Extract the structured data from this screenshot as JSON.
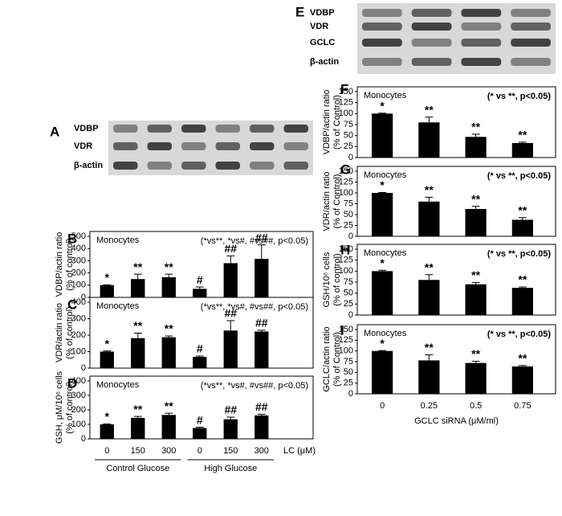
{
  "blots": [
    {
      "panel": "A",
      "labels": [
        "VDBP",
        "VDR",
        "β-actin"
      ]
    },
    {
      "panel": "E",
      "labels": [
        "VDBP",
        "VDR",
        "GCLC",
        "β-actin"
      ]
    }
  ],
  "chart_data": [
    {
      "panel": "B",
      "type": "bar",
      "ylabel": [
        "VDBP/actin ratio",
        "(% of control)"
      ],
      "annotation": "Monocytes",
      "note": "(*vs**, *vs#, #vs##, p<0.05)",
      "categories": [
        null,
        null,
        null,
        null,
        null,
        null
      ],
      "values": [
        100,
        150,
        165,
        70,
        280,
        315
      ],
      "errors": [
        3,
        40,
        25,
        15,
        60,
        115
      ],
      "bar_labels": [
        "*",
        "**",
        "**",
        "#",
        "##",
        "##"
      ],
      "ylim": [
        0,
        500
      ],
      "yticks": [
        0,
        100,
        200,
        300,
        400,
        500
      ],
      "color": "#000000"
    },
    {
      "panel": "C",
      "type": "bar",
      "ylabel": [
        "VDR/actin ratio",
        "(% of control)"
      ],
      "annotation": "Monocytes",
      "note": "(*vs**, *vs#, #vs##, p<0.05)",
      "categories": [
        null,
        null,
        null,
        null,
        null,
        null
      ],
      "values": [
        100,
        182,
        187,
        68,
        228,
        222
      ],
      "errors": [
        4,
        30,
        8,
        5,
        60,
        8
      ],
      "bar_labels": [
        "*",
        "**",
        "**",
        "#",
        "##",
        "##"
      ],
      "ylim": [
        0,
        400
      ],
      "yticks": [
        0,
        100,
        200,
        300,
        400
      ],
      "color": "#000000"
    },
    {
      "panel": "D",
      "type": "bar",
      "ylabel": [
        "GSH, μM/10⁶ cells",
        "(% of control)"
      ],
      "annotation": "Monocytes",
      "note": "(*vs**, *vs#, #vs##, p<0.05)",
      "categories": [
        "0",
        "150",
        "300",
        "0",
        "150",
        "300"
      ],
      "values": [
        100,
        145,
        165,
        75,
        135,
        162
      ],
      "errors": [
        3,
        10,
        12,
        5,
        15,
        8
      ],
      "bar_labels": [
        "*",
        "**",
        "**",
        "#",
        "##",
        "##"
      ],
      "ylim": [
        0,
        400
      ],
      "yticks": [
        0,
        100,
        200,
        300,
        400
      ],
      "color": "#000000",
      "xlabel": "LC (μM)",
      "groups": [
        "Control Glucose",
        "High Glucose"
      ]
    },
    {
      "panel": "F",
      "type": "bar",
      "ylabel": [
        "VDBP/actin ratio",
        "(% of Control)"
      ],
      "annotation": "Monocytes",
      "note": "(* vs **, p<0.05)",
      "categories": [
        null,
        null,
        null,
        null
      ],
      "values": [
        100,
        80,
        47,
        33
      ],
      "errors": [
        1,
        12,
        6,
        2
      ],
      "bar_labels": [
        "*",
        "**",
        "**",
        "**"
      ],
      "ylim": [
        0,
        150
      ],
      "yticks": [
        0,
        25,
        50,
        75,
        100,
        125,
        150
      ],
      "color": "#000000"
    },
    {
      "panel": "G",
      "type": "bar",
      "ylabel": [
        "VDR/actin ratio",
        "(% of Control)"
      ],
      "annotation": "Monocytes",
      "note": "(* vs **, p<0.05)",
      "categories": [
        null,
        null,
        null,
        null
      ],
      "values": [
        100,
        80,
        63,
        38
      ],
      "errors": [
        1,
        10,
        6,
        5
      ],
      "bar_labels": [
        "*",
        "**",
        "**",
        "**"
      ],
      "ylim": [
        0,
        150
      ],
      "yticks": [
        0,
        25,
        50,
        75,
        100,
        125,
        150
      ],
      "color": "#000000"
    },
    {
      "panel": "H",
      "type": "bar",
      "ylabel": [
        "GSH/10⁶ cells",
        "(% of control)"
      ],
      "annotation": "Monocytes",
      "note": "(* vs **, p<0.05)",
      "categories": [
        null,
        null,
        null,
        null
      ],
      "values": [
        100,
        80,
        70,
        62
      ],
      "errors": [
        2,
        12,
        4,
        2
      ],
      "bar_labels": [
        "*",
        "**",
        "**",
        "**"
      ],
      "ylim": [
        0,
        150
      ],
      "yticks": [
        0,
        25,
        50,
        75,
        100,
        125,
        150
      ],
      "color": "#000000"
    },
    {
      "panel": "I",
      "type": "bar",
      "ylabel": [
        "GCLC/actin ratio",
        "(% of Control)"
      ],
      "annotation": "Monocytes",
      "note": "(* vs **, p<0.05)",
      "categories": [
        "0",
        "0.25",
        "0.5",
        "0.75"
      ],
      "values": [
        100,
        78,
        72,
        64
      ],
      "errors": [
        1,
        13,
        4,
        2
      ],
      "bar_labels": [
        "*",
        "**",
        "**",
        "**"
      ],
      "ylim": [
        0,
        150
      ],
      "yticks": [
        0,
        25,
        50,
        75,
        100,
        125,
        150
      ],
      "color": "#000000",
      "xlabel": "GCLC siRNA (μM/ml)"
    }
  ]
}
